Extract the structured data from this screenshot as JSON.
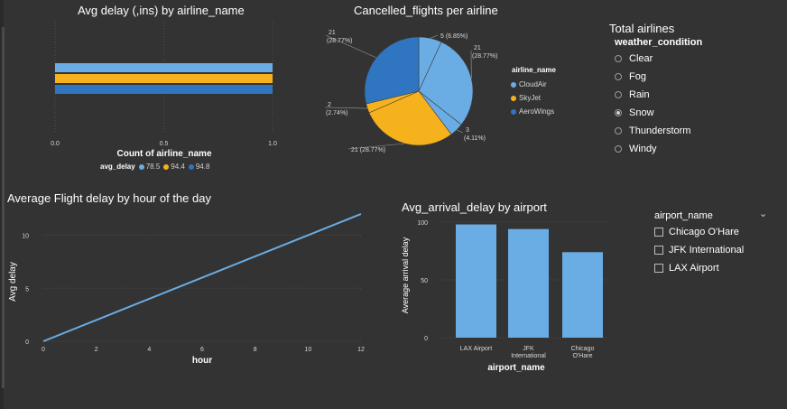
{
  "visual1": {
    "title": "Avg delay (,ins) by airline_name",
    "xlabel": "Count of airline_name",
    "legend_title": "avg_delay",
    "ticks": [
      "0.0",
      "0.5",
      "1.0"
    ]
  },
  "visual2": {
    "title": "Cancelled_flights per airline",
    "legend_title": "airline_name"
  },
  "visual3": {
    "title": "Average Flight delay by hour of the day",
    "xlabel": "hour",
    "ylabel": "Avg delay"
  },
  "visual4": {
    "title": "Avg_arrival_delay by airport",
    "xlabel": "airport_name",
    "ylabel": "Average arrival delay"
  },
  "weather_slicer": {
    "title": "Total airlines",
    "header": "weather_condition",
    "options": [
      "Clear",
      "Fog",
      "Rain",
      "Snow",
      "Thunderstorm",
      "Windy"
    ],
    "selected": "Snow"
  },
  "airport_slicer": {
    "header": "airport_name",
    "options": [
      "Chicago O'Hare",
      "JFK International",
      "LAX Airport"
    ]
  },
  "colors": {
    "background": "#333333",
    "light_blue": "#6aade4",
    "yellow": "#f5b21c",
    "dark_blue": "#2f75c0",
    "line": "#6aade4"
  },
  "chart_data": [
    {
      "type": "bar",
      "orientation": "horizontal",
      "title": "Avg delay (,ins) by airline_name",
      "xlabel": "Count of airline_name",
      "xlim": [
        0,
        1.0
      ],
      "series": [
        {
          "name": "78.5",
          "values": [
            1
          ],
          "color": "#6aade4"
        },
        {
          "name": "94.4",
          "values": [
            1
          ],
          "color": "#f5b21c"
        },
        {
          "name": "94.8",
          "values": [
            1
          ],
          "color": "#2f75c0"
        }
      ],
      "legend_title": "avg_delay",
      "legend": "bottom",
      "grid": true
    },
    {
      "type": "pie",
      "title": "Cancelled_flights per airline",
      "slices": [
        {
          "label": "5 (6.85%)",
          "value": 5,
          "color": "#6aade4"
        },
        {
          "label": "21 (28.77%)",
          "value": 21,
          "color": "#6aade4"
        },
        {
          "label": "3 (4.11%)",
          "value": 3,
          "color": "#6aade4"
        },
        {
          "label": "21 (28.77%)",
          "value": 21,
          "color": "#f5b21c"
        },
        {
          "label": "2 (2.74%)",
          "value": 2,
          "color": "#f5b21c"
        },
        {
          "label": "21 (28.77%)",
          "value": 21,
          "color": "#2f75c0"
        }
      ],
      "legend_title": "airline_name",
      "legend_items": [
        {
          "name": "CloudAir",
          "color": "#6aade4"
        },
        {
          "name": "SkyJet",
          "color": "#f5b21c"
        },
        {
          "name": "AeroWings",
          "color": "#2f75c0"
        }
      ],
      "legend": "right"
    },
    {
      "type": "line",
      "title": "Average Flight delay by hour of the day",
      "xlabel": "hour",
      "ylabel": "Avg delay",
      "x": [
        0,
        12
      ],
      "y": [
        0,
        12
      ],
      "xlim": [
        0,
        12
      ],
      "ylim": [
        0,
        12
      ],
      "xticks": [
        0,
        2,
        4,
        6,
        8,
        10,
        12
      ],
      "yticks": [
        0,
        5,
        10
      ],
      "grid": true
    },
    {
      "type": "bar",
      "title": "Avg_arrival_delay by airport",
      "xlabel": "airport_name",
      "ylabel": "Average arrival delay",
      "categories": [
        "LAX Airport",
        "JFK International",
        "Chicago O'Hare"
      ],
      "values": [
        98,
        94,
        74
      ],
      "ylim": [
        0,
        100
      ],
      "yticks": [
        0,
        50,
        100
      ],
      "color": "#6aade4",
      "grid": true
    }
  ]
}
